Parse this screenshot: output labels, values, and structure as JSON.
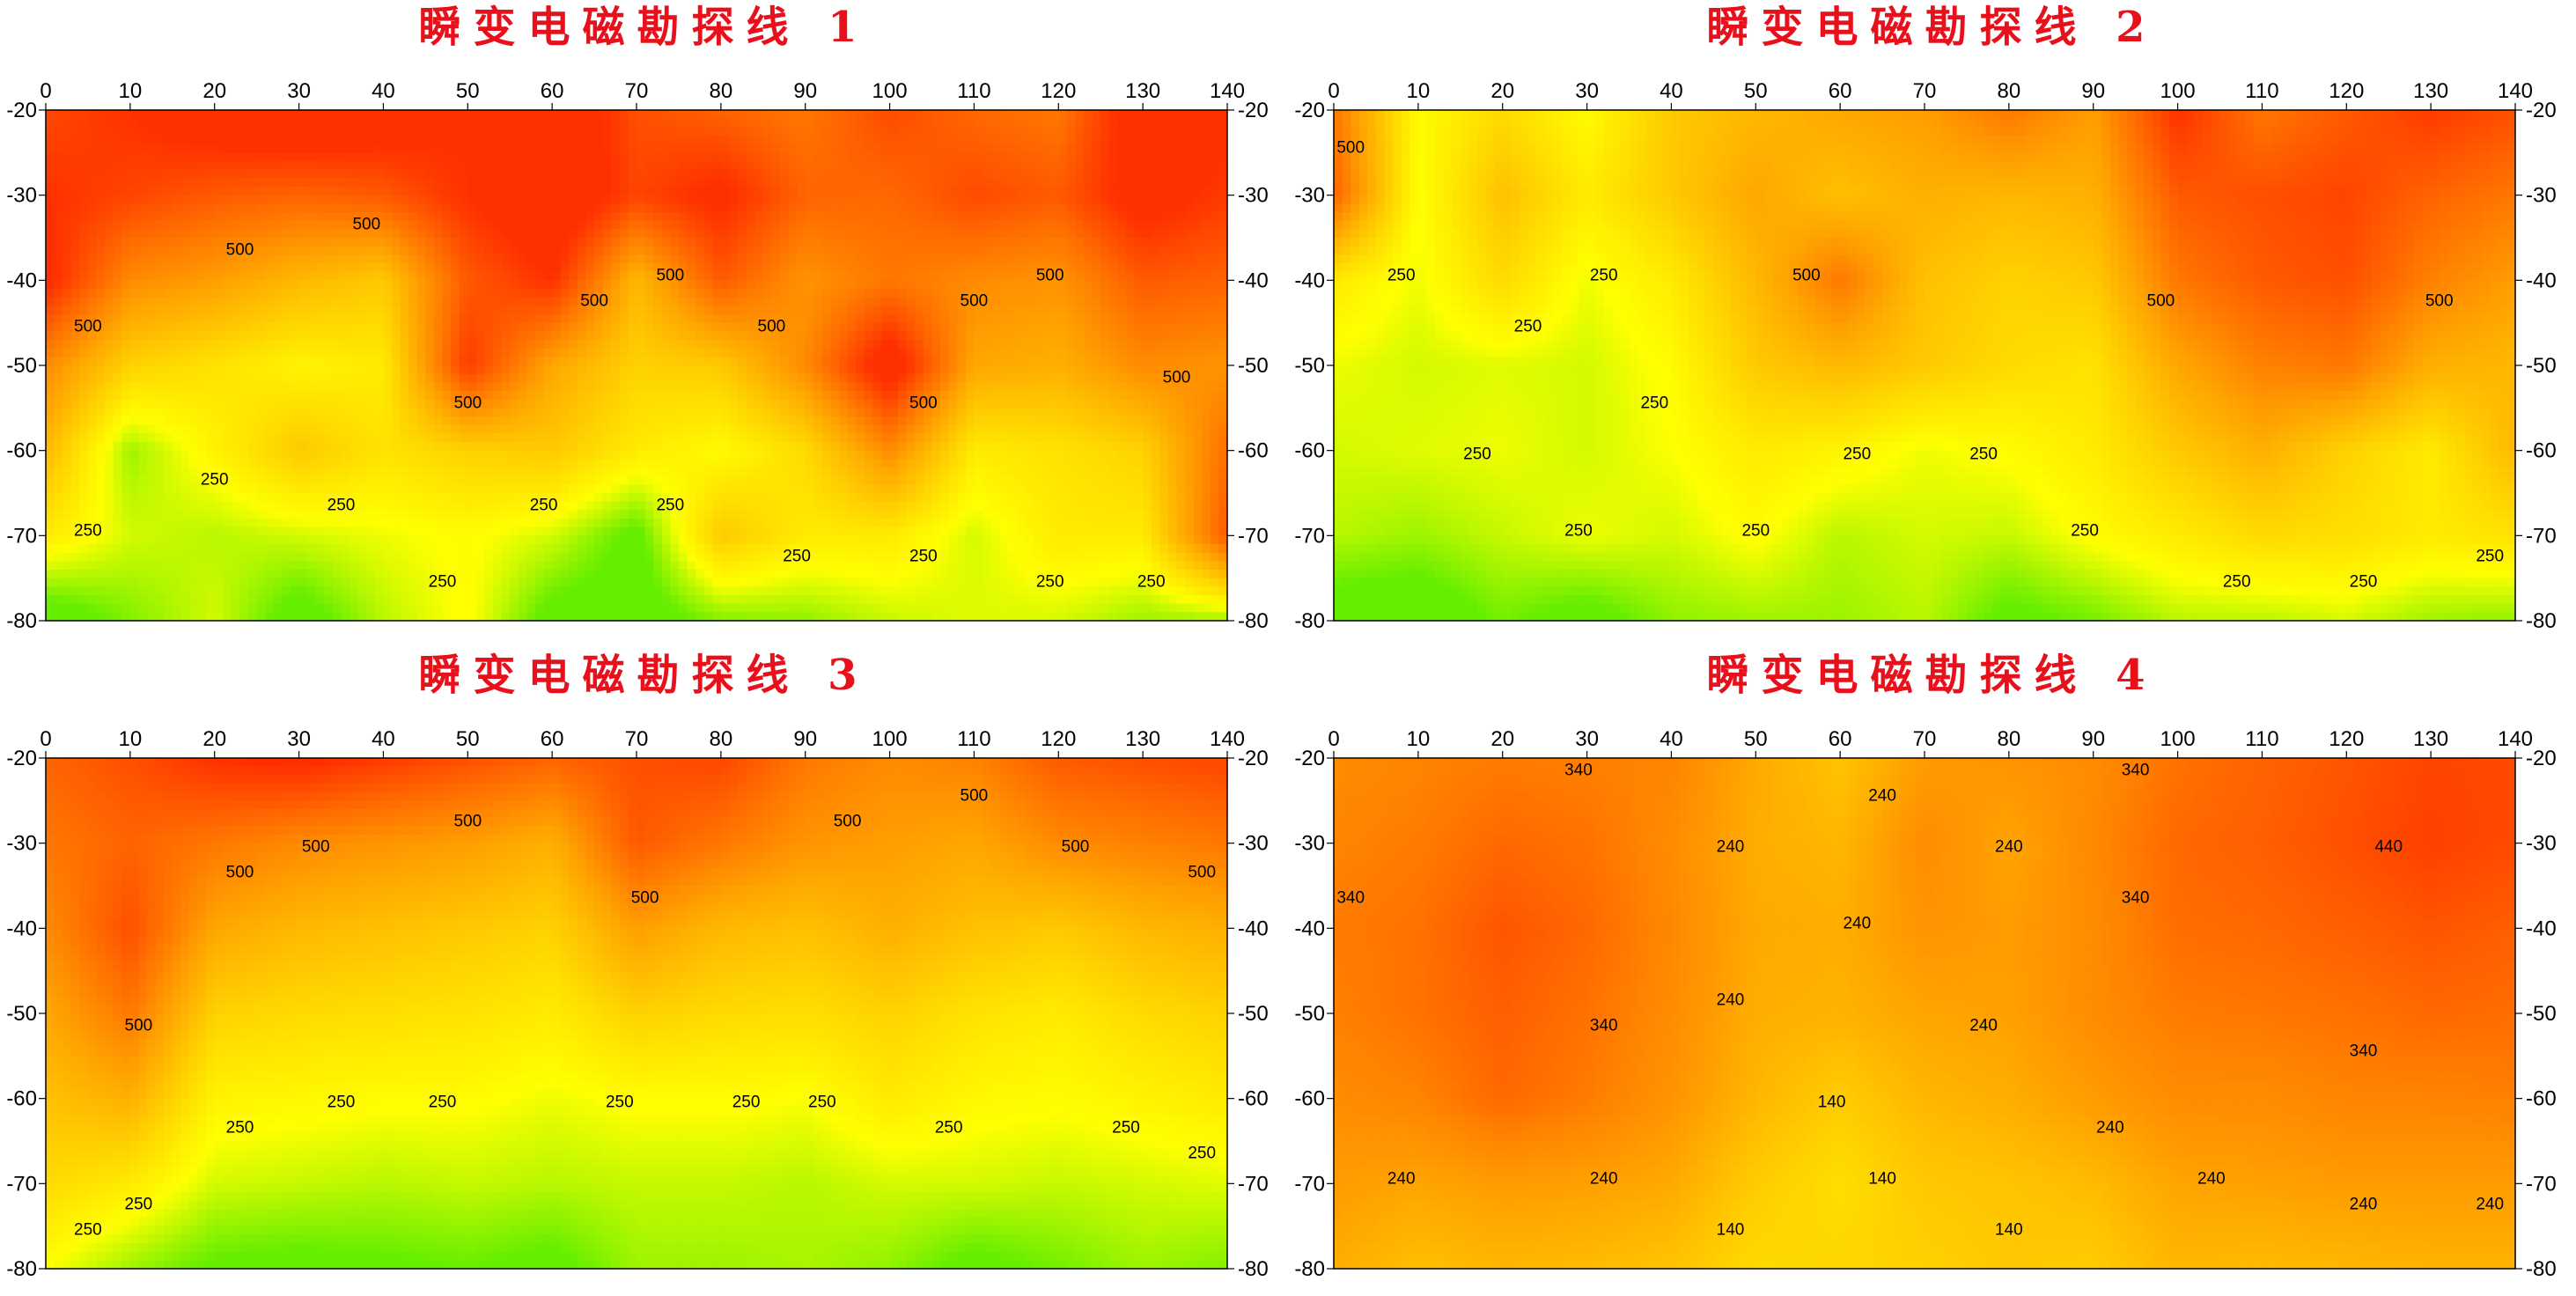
{
  "chart_data": [
    {
      "type": "heatmap",
      "subtype": "filled-contour",
      "title": "瞬变电磁勘探线 1",
      "x_ticks": [
        0,
        10,
        20,
        30,
        40,
        50,
        60,
        70,
        80,
        90,
        100,
        110,
        120,
        130,
        140
      ],
      "y_ticks": [
        -20,
        -30,
        -40,
        -50,
        -60,
        -70,
        -80
      ],
      "xlim": [
        0,
        140
      ],
      "ylim": [
        -80,
        -20
      ],
      "contour_labels": [
        "500",
        "500",
        "500",
        "500",
        "500",
        "500",
        "500",
        "500",
        "500",
        "500",
        "500",
        "250",
        "250",
        "250",
        "250",
        "250",
        "250",
        "250",
        "250",
        "250",
        "250"
      ],
      "x": [
        0,
        10,
        20,
        30,
        40,
        50,
        60,
        70,
        80,
        90,
        100,
        110,
        120,
        130,
        140
      ],
      "y": [
        -20,
        -30,
        -40,
        -50,
        -60,
        -70,
        -80
      ],
      "z": [
        [
          650,
          700,
          760,
          780,
          760,
          700,
          790,
          640,
          600,
          560,
          650,
          590,
          560,
          760,
          720
        ],
        [
          700,
          660,
          620,
          600,
          620,
          700,
          780,
          660,
          720,
          600,
          590,
          650,
          620,
          740,
          680
        ],
        [
          720,
          520,
          480,
          420,
          380,
          620,
          700,
          420,
          620,
          500,
          560,
          520,
          500,
          620,
          600
        ],
        [
          520,
          360,
          320,
          280,
          300,
          680,
          460,
          360,
          380,
          520,
          760,
          460,
          440,
          520,
          500
        ],
        [
          420,
          180,
          280,
          380,
          320,
          360,
          380,
          300,
          260,
          340,
          520,
          300,
          320,
          360,
          580
        ],
        [
          300,
          220,
          200,
          220,
          240,
          260,
          220,
          120,
          380,
          300,
          300,
          220,
          300,
          300,
          620
        ],
        [
          90,
          160,
          220,
          100,
          200,
          260,
          110,
          100,
          160,
          170,
          210,
          230,
          220,
          180,
          180
        ]
      ],
      "colormap": [
        "#66ee00",
        "#ffff00",
        "#ffd000",
        "#ffa000",
        "#ff6a00",
        "#ff3000"
      ],
      "levels": [
        140,
        190,
        250,
        320,
        400,
        500,
        600,
        700
      ]
    },
    {
      "type": "heatmap",
      "subtype": "filled-contour",
      "title": "瞬变电磁勘探线 2",
      "x_ticks": [
        0,
        10,
        20,
        30,
        40,
        50,
        60,
        70,
        80,
        90,
        100,
        110,
        120,
        130,
        140
      ],
      "y_ticks": [
        -20,
        -30,
        -40,
        -50,
        -60,
        -70,
        -80
      ],
      "xlim": [
        0,
        140
      ],
      "ylim": [
        -80,
        -20
      ],
      "contour_labels": [
        "250",
        "250",
        "250",
        "250",
        "500",
        "250",
        "250",
        "250",
        "500",
        "250",
        "500",
        "500",
        "250",
        "250",
        "250",
        "250",
        "250"
      ],
      "x": [
        0,
        10,
        20,
        30,
        40,
        50,
        60,
        70,
        80,
        90,
        100,
        110,
        120,
        130,
        140
      ],
      "y": [
        -20,
        -30,
        -40,
        -50,
        -60,
        -70,
        -80
      ],
      "z": [
        [
          560,
          260,
          340,
          260,
          380,
          420,
          460,
          480,
          560,
          480,
          700,
          560,
          620,
          680,
          640
        ],
        [
          600,
          250,
          400,
          300,
          380,
          460,
          400,
          440,
          420,
          440,
          620,
          640,
          660,
          600,
          560
        ],
        [
          300,
          240,
          340,
          240,
          300,
          420,
          560,
          400,
          360,
          380,
          560,
          620,
          640,
          540,
          480
        ],
        [
          240,
          220,
          230,
          220,
          260,
          380,
          420,
          380,
          340,
          320,
          460,
          540,
          560,
          440,
          420
        ],
        [
          220,
          230,
          240,
          220,
          250,
          300,
          280,
          240,
          260,
          300,
          380,
          440,
          360,
          300,
          420
        ],
        [
          200,
          180,
          210,
          240,
          220,
          260,
          200,
          220,
          210,
          260,
          300,
          340,
          330,
          300,
          320
        ],
        [
          100,
          90,
          150,
          110,
          170,
          180,
          180,
          200,
          120,
          150,
          200,
          200,
          220,
          180,
          170
        ]
      ],
      "colormap": [
        "#66ee00",
        "#ffff00",
        "#ffd000",
        "#ffa000",
        "#ff6a00",
        "#ff3000"
      ],
      "levels": [
        140,
        190,
        250,
        320,
        400,
        500,
        600,
        700
      ]
    },
    {
      "type": "heatmap",
      "subtype": "filled-contour",
      "title": "瞬变电磁勘探线 3",
      "x_ticks": [
        0,
        10,
        20,
        30,
        40,
        50,
        60,
        70,
        80,
        90,
        100,
        110,
        120,
        130,
        140
      ],
      "y_ticks": [
        -20,
        -30,
        -40,
        -50,
        -60,
        -70,
        -80
      ],
      "xlim": [
        0,
        140
      ],
      "ylim": [
        -80,
        -20
      ],
      "contour_labels": [
        "500",
        "500",
        "500",
        "500",
        "500",
        "500",
        "500",
        "500",
        "500",
        "250",
        "250",
        "250",
        "250",
        "250",
        "250",
        "250",
        "250",
        "250",
        "250",
        "250"
      ],
      "x": [
        0,
        10,
        20,
        30,
        40,
        50,
        60,
        70,
        80,
        90,
        100,
        110,
        120,
        130,
        140
      ],
      "y": [
        -20,
        -30,
        -40,
        -50,
        -60,
        -70,
        -80
      ],
      "z": [
        [
          600,
          640,
          700,
          720,
          680,
          640,
          600,
          640,
          660,
          560,
          520,
          540,
          620,
          640,
          660
        ],
        [
          560,
          600,
          560,
          520,
          500,
          480,
          440,
          620,
          560,
          500,
          480,
          460,
          520,
          540,
          560
        ],
        [
          520,
          640,
          460,
          420,
          400,
          380,
          360,
          480,
          420,
          400,
          440,
          400,
          380,
          420,
          440
        ],
        [
          460,
          560,
          360,
          340,
          330,
          320,
          300,
          360,
          340,
          330,
          360,
          320,
          300,
          340,
          360
        ],
        [
          400,
          440,
          280,
          270,
          260,
          260,
          240,
          260,
          260,
          250,
          300,
          270,
          260,
          280,
          300
        ],
        [
          340,
          300,
          220,
          210,
          200,
          210,
          200,
          210,
          210,
          200,
          220,
          220,
          210,
          220,
          230
        ],
        [
          250,
          180,
          130,
          120,
          130,
          140,
          120,
          180,
          180,
          190,
          170,
          120,
          150,
          180,
          160
        ]
      ],
      "colormap": [
        "#66ee00",
        "#ffff00",
        "#ffd000",
        "#ffa000",
        "#ff6a00",
        "#ff3000"
      ],
      "levels": [
        140,
        190,
        250,
        320,
        400,
        500,
        600,
        700
      ]
    },
    {
      "type": "heatmap",
      "subtype": "filled-contour",
      "title": "瞬变电磁勘探线 4",
      "x_ticks": [
        0,
        10,
        20,
        30,
        40,
        50,
        60,
        70,
        80,
        90,
        100,
        110,
        120,
        130,
        140
      ],
      "y_ticks": [
        -20,
        -30,
        -40,
        -50,
        -60,
        -70,
        -80
      ],
      "xlim": [
        0,
        140
      ],
      "ylim": [
        -80,
        -20
      ],
      "contour_labels": [
        "240",
        "240",
        "240",
        "340",
        "340",
        "340",
        "340",
        "340",
        "340",
        "240",
        "240",
        "240",
        "240",
        "240",
        "240",
        "140",
        "140",
        "140",
        "140",
        "440",
        "240",
        "240",
        "240"
      ],
      "x": [
        0,
        10,
        20,
        30,
        40,
        50,
        60,
        70,
        80,
        90,
        100,
        110,
        120,
        130,
        140
      ],
      "y": [
        -20,
        -30,
        -40,
        -50,
        -60,
        -70,
        -80
      ],
      "z": [
        [
          300,
          320,
          340,
          330,
          320,
          230,
          170,
          260,
          280,
          300,
          360,
          390,
          420,
          450,
          440
        ],
        [
          320,
          340,
          380,
          360,
          300,
          220,
          200,
          300,
          240,
          310,
          380,
          400,
          430,
          460,
          440
        ],
        [
          340,
          360,
          420,
          380,
          310,
          230,
          220,
          280,
          260,
          300,
          370,
          380,
          400,
          420,
          400
        ],
        [
          330,
          360,
          400,
          360,
          300,
          220,
          210,
          240,
          250,
          300,
          340,
          350,
          360,
          380,
          370
        ],
        [
          300,
          320,
          380,
          340,
          280,
          200,
          150,
          200,
          220,
          260,
          300,
          300,
          320,
          320,
          330
        ],
        [
          260,
          240,
          260,
          250,
          230,
          150,
          110,
          160,
          170,
          190,
          240,
          250,
          260,
          260,
          260
        ],
        [
          220,
          180,
          200,
          190,
          170,
          120,
          130,
          140,
          160,
          150,
          200,
          190,
          200,
          210,
          210
        ]
      ],
      "colormap": [
        "#ffe600",
        "#ffc400",
        "#ffa000",
        "#ff8000",
        "#ff5a00",
        "#ff3000"
      ],
      "levels": [
        90,
        140,
        190,
        240,
        290,
        340,
        390,
        440,
        490
      ]
    }
  ]
}
